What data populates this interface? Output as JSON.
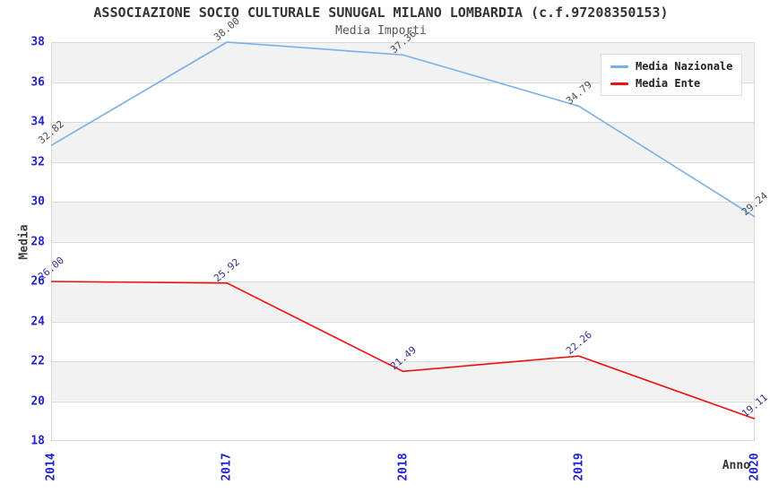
{
  "chart_data": {
    "type": "line",
    "title": "ASSOCIAZIONE SOCIO CULTURALE SUNUGAL MILANO LOMBARDIA (c.f.97208350153)",
    "subtitle": "Media Importi",
    "xlabel": "Anno",
    "ylabel": "Media",
    "categories": [
      "2014",
      "2017",
      "2018",
      "2019",
      "2020"
    ],
    "series": [
      {
        "name": "Media Nazionale",
        "color": "#79afe8",
        "label_color": "#4d4d4d",
        "values": [
          32.82,
          38.0,
          37.36,
          34.79,
          29.24
        ]
      },
      {
        "name": "Media Ente",
        "color": "#ee1111",
        "label_color": "#333399",
        "values": [
          26.0,
          25.92,
          21.49,
          22.26,
          19.11
        ]
      }
    ],
    "ylim": [
      18,
      38
    ],
    "ytick_step": 2,
    "grid": true,
    "band_color": "#f2f2f2",
    "gridline_color": "#d9d9d9",
    "axis_tick_color": "#2323cc",
    "legend_position": "top-right"
  }
}
